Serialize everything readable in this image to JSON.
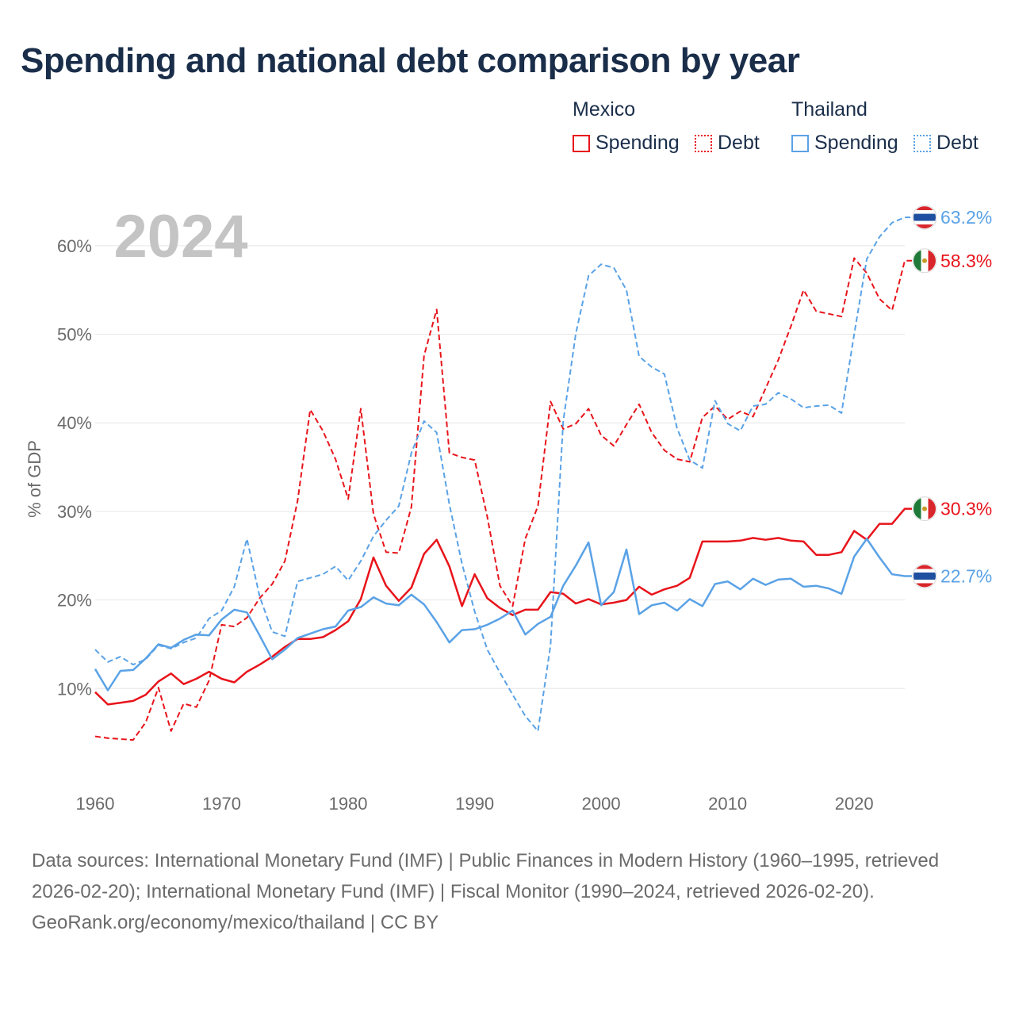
{
  "title": "Spending and national debt comparison by year",
  "legend": {
    "mexico": {
      "country": "Mexico",
      "spending": "Spending",
      "debt": "Debt",
      "color": "#e8141b"
    },
    "thailand": {
      "country": "Thailand",
      "spending": "Spending",
      "debt": "Debt",
      "color": "#5aa2e6"
    }
  },
  "year_label": "2024",
  "footer": {
    "sources": "Data sources: International Monetary Fund (IMF) | Public Finances in Modern History (1960–1995, retrieved 2026-02-20); International Monetary Fund (IMF) | Fiscal Monitor (1990–2024, retrieved 2026-02-20).",
    "credit": "GeoRank.org/economy/mexico/thailand | CC BY"
  },
  "chart_data": {
    "type": "line",
    "title": "Spending and national debt comparison by year",
    "xlabel": "",
    "ylabel": "% of GDP",
    "xlim": [
      1960,
      2024
    ],
    "ylim": [
      0,
      65
    ],
    "grid": true,
    "x_ticks": [
      1960,
      1970,
      1980,
      1990,
      2000,
      2010,
      2020
    ],
    "y_ticks": [
      10,
      20,
      30,
      40,
      50,
      60
    ],
    "x_tick_labels": [
      "1960",
      "1970",
      "1980",
      "1990",
      "2000",
      "2010",
      "2020"
    ],
    "y_tick_labels": [
      "10%",
      "20%",
      "30%",
      "40%",
      "50%",
      "60%"
    ],
    "start_year": 1960,
    "series": [
      {
        "name": "Mexico Spending",
        "country": "Mexico",
        "style": "solid",
        "color": "#e8141b",
        "end_label": "30.3%",
        "values": [
          9.6,
          8.2,
          8.4,
          8.6,
          9.3,
          10.8,
          11.7,
          10.5,
          11.1,
          11.9,
          11.1,
          10.7,
          11.9,
          12.7,
          13.6,
          14.7,
          15.6,
          15.6,
          15.8,
          16.6,
          17.6,
          20.1,
          24.8,
          21.6,
          19.9,
          21.4,
          25.2,
          26.8,
          23.8,
          19.3,
          22.9,
          20.2,
          19.1,
          18.3,
          18.9,
          18.9,
          20.9,
          20.7,
          19.6,
          20.1,
          19.5,
          19.7,
          20.0,
          21.5,
          20.6,
          21.2,
          21.6,
          22.5,
          26.6,
          26.6,
          26.6,
          26.7,
          27.0,
          26.8,
          27.0,
          26.7,
          26.6,
          25.1,
          25.1,
          25.4,
          27.8,
          26.8,
          28.6,
          28.6,
          30.3
        ]
      },
      {
        "name": "Mexico Debt",
        "country": "Mexico",
        "style": "dashed",
        "color": "#e8141b",
        "end_label": "58.3%",
        "values": [
          4.6,
          4.4,
          4.3,
          4.2,
          6.2,
          10.1,
          5.2,
          8.3,
          7.9,
          10.9,
          17.2,
          17.0,
          18.0,
          20.2,
          21.8,
          24.4,
          31.2,
          41.5,
          39.1,
          35.9,
          31.4,
          41.6,
          29.7,
          25.4,
          25.3,
          30.5,
          47.6,
          52.8,
          36.6,
          36.1,
          35.8,
          29.4,
          21.6,
          19.3,
          26.9,
          30.6,
          42.4,
          39.3,
          39.9,
          41.6,
          38.6,
          37.4,
          39.8,
          42.1,
          38.9,
          36.9,
          35.9,
          35.6,
          40.6,
          41.9,
          40.4,
          41.3,
          40.7,
          43.9,
          47.1,
          50.9,
          55.0,
          52.6,
          52.3,
          52.0,
          58.6,
          56.9,
          54.0,
          52.7,
          58.3
        ]
      },
      {
        "name": "Thailand Spending",
        "country": "Thailand",
        "style": "solid",
        "color": "#5aa2e6",
        "end_label": "22.7%",
        "values": [
          12.2,
          9.8,
          12.0,
          12.1,
          13.4,
          15.0,
          14.6,
          15.5,
          16.1,
          16.0,
          17.8,
          18.9,
          18.6,
          16.0,
          13.3,
          14.4,
          15.7,
          16.2,
          16.7,
          17.0,
          18.8,
          19.2,
          20.3,
          19.6,
          19.4,
          20.6,
          19.5,
          17.5,
          15.2,
          16.6,
          16.7,
          17.2,
          17.9,
          18.8,
          16.1,
          17.3,
          18.1,
          21.6,
          23.9,
          26.5,
          19.4,
          20.9,
          25.7,
          18.4,
          19.4,
          19.7,
          18.8,
          20.1,
          19.3,
          21.8,
          22.1,
          21.2,
          22.4,
          21.7,
          22.3,
          22.4,
          21.5,
          21.6,
          21.3,
          20.7,
          24.9,
          26.9,
          24.8,
          22.9,
          22.7
        ]
      },
      {
        "name": "Thailand Debt",
        "country": "Thailand",
        "style": "dashed",
        "color": "#5aa2e6",
        "end_label": "63.2%",
        "values": [
          14.4,
          13.0,
          13.6,
          12.7,
          13.3,
          14.9,
          14.5,
          15.2,
          15.7,
          17.9,
          18.8,
          21.5,
          26.9,
          20.4,
          16.4,
          15.9,
          22.1,
          22.5,
          22.9,
          23.8,
          22.2,
          24.4,
          27.2,
          29.0,
          30.6,
          36.6,
          40.2,
          38.9,
          30.8,
          24.1,
          18.7,
          14.4,
          11.8,
          9.3,
          6.9,
          5.2,
          14.9,
          40.2,
          50.1,
          56.6,
          57.9,
          57.5,
          55.0,
          47.5,
          46.3,
          45.5,
          39.4,
          35.8,
          34.9,
          42.5,
          39.9,
          39.1,
          41.9,
          42.1,
          43.4,
          42.7,
          41.7,
          41.9,
          42.0,
          41.1,
          50.0,
          58.5,
          61.0,
          62.6,
          63.2
        ]
      }
    ]
  }
}
